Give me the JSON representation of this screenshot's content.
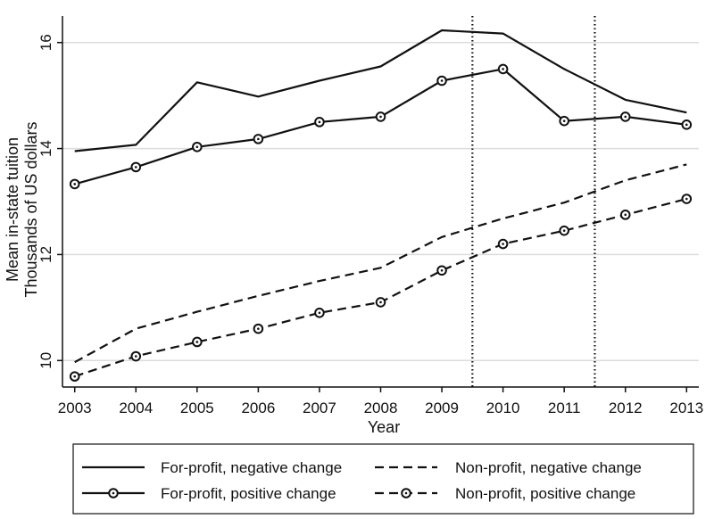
{
  "chart_data": {
    "type": "line",
    "title": "",
    "xlabel": "Year",
    "ylabel_lines": [
      "Mean in-state tuition",
      "Thousands of US dollars"
    ],
    "x": [
      2003,
      2004,
      2005,
      2006,
      2007,
      2008,
      2009,
      2010,
      2011,
      2012,
      2013
    ],
    "xticks": [
      "2003",
      "2004",
      "2005",
      "2006",
      "2007",
      "2008",
      "2009",
      "2010",
      "2011",
      "2012",
      "2013"
    ],
    "xlim": [
      2002.8,
      2013.2
    ],
    "yticks": [
      "10",
      "12",
      "14",
      "16"
    ],
    "ylim": [
      9.5,
      16.5
    ],
    "grid": true,
    "vertical_reference_lines": [
      2009.5,
      2011.5
    ],
    "legend_position": "bottom",
    "series": [
      {
        "name": "For-profit, negative change",
        "style": "solid",
        "marker": "none",
        "values": [
          13.95,
          14.07,
          15.25,
          14.98,
          15.28,
          15.55,
          16.23,
          16.17,
          15.5,
          14.92,
          14.68
        ]
      },
      {
        "name": "Non-profit, negative change",
        "style": "dashed",
        "marker": "none",
        "values": [
          9.97,
          10.6,
          10.92,
          11.22,
          11.5,
          11.75,
          12.33,
          12.68,
          12.98,
          13.4,
          13.7
        ]
      },
      {
        "name": "For-profit, positive change",
        "style": "solid",
        "marker": "circle",
        "values": [
          13.33,
          13.65,
          14.03,
          14.18,
          14.5,
          14.6,
          15.28,
          15.5,
          14.52,
          14.6,
          14.45
        ]
      },
      {
        "name": "Non-profit, positive change",
        "style": "dashed",
        "marker": "circle",
        "values": [
          9.7,
          10.08,
          10.35,
          10.6,
          10.9,
          11.1,
          11.7,
          12.2,
          12.45,
          12.75,
          13.05
        ]
      }
    ]
  }
}
